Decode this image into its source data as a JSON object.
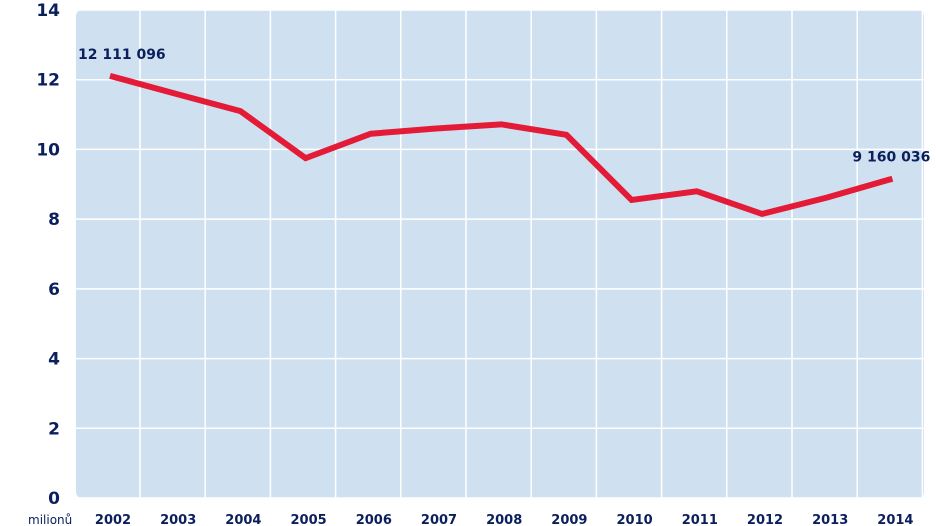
{
  "chart_data": {
    "type": "line",
    "title": "",
    "xlabel": "",
    "ylabel": "",
    "unit_label": "milionů",
    "x": [
      "2002",
      "2003",
      "2004",
      "2005",
      "2006",
      "2007",
      "2008",
      "2009",
      "2010",
      "2011",
      "2012",
      "2013",
      "2014"
    ],
    "series": [
      {
        "values": [
          12.11,
          11.6,
          11.1,
          9.75,
          10.45,
          10.6,
          10.72,
          10.42,
          8.55,
          8.8,
          8.15,
          8.62,
          9.16
        ]
      }
    ],
    "ylim": [
      0,
      14
    ],
    "yticks": [
      0,
      2,
      4,
      6,
      8,
      10,
      12,
      14
    ],
    "grid": true,
    "annotations": [
      {
        "index": 0,
        "text": "12 111 096"
      },
      {
        "index": 12,
        "text": "9 160 036"
      }
    ],
    "colors": {
      "line": "#e31b37",
      "background": "#cfe0f1",
      "grid": "#ffffff",
      "text": "#0a1f5c"
    }
  }
}
